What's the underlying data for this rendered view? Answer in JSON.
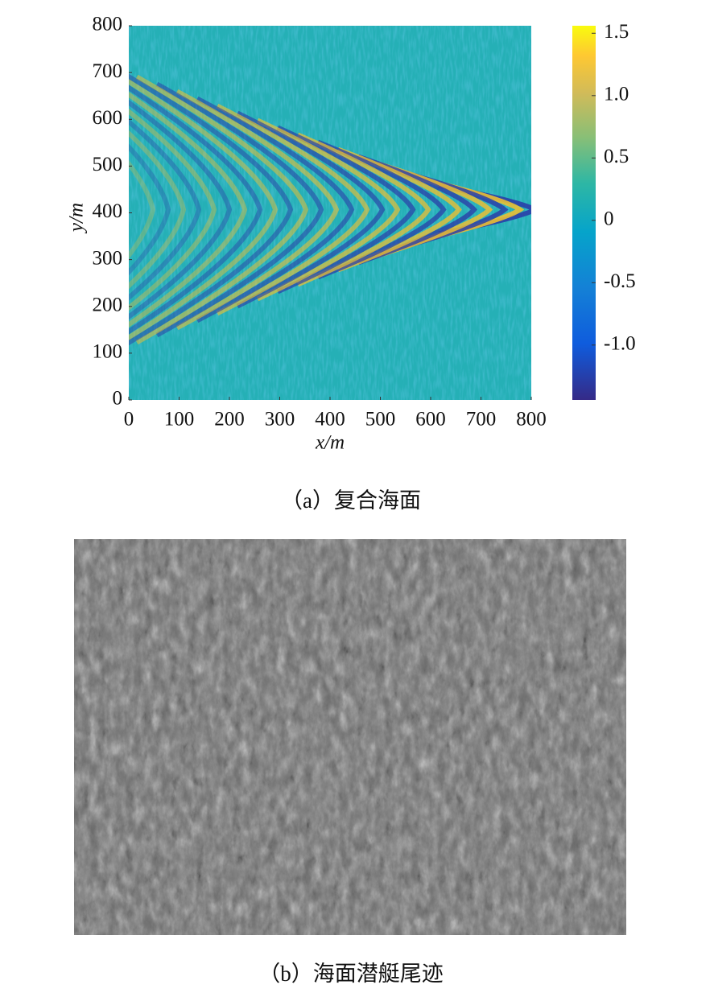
{
  "chart_data": {
    "type": "heatmap",
    "xlabel": "x/m",
    "ylabel": "y/m",
    "xlim": [
      0,
      800
    ],
    "ylim": [
      0,
      800
    ],
    "xticks": [
      0,
      100,
      200,
      300,
      400,
      500,
      600,
      700,
      800
    ],
    "yticks": [
      0,
      100,
      200,
      300,
      400,
      500,
      600,
      700,
      800
    ],
    "clim": [
      -1.44,
      1.56
    ],
    "cticks": [
      1.5,
      {
        "value": 1,
        "label": "1.0"
      },
      0.5,
      0,
      -0.5,
      {
        "value": -1,
        "label": "-1.0"
      }
    ],
    "colormap": "parula"
  },
  "captions": [
    "（a）复合海面",
    "（b）海面潜艇尾迹"
  ]
}
